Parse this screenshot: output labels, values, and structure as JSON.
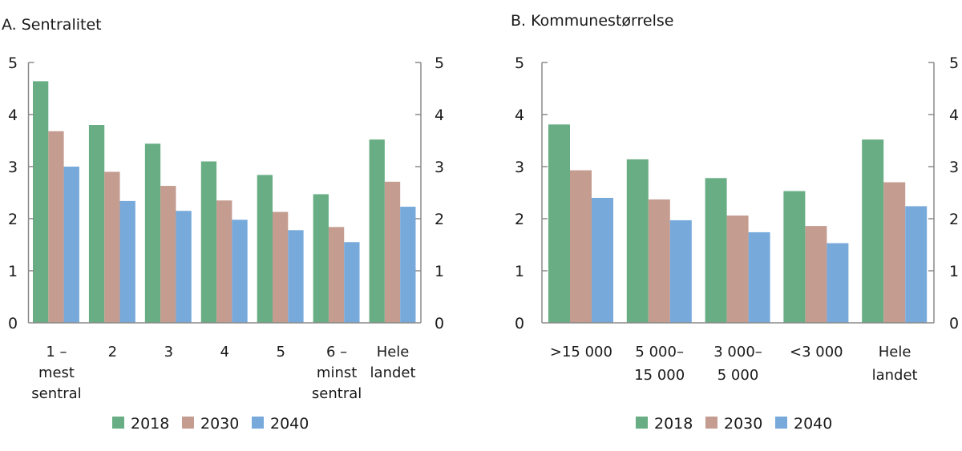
{
  "colors": {
    "2018": "#68ad84",
    "2030": "#c49c90",
    "2040": "#77aadb",
    "axis": "#8a8a8a"
  },
  "chart_data": [
    {
      "type": "bar",
      "panel": "A",
      "title": "A.  Sentralitet",
      "xlabel": "",
      "ylabel": "",
      "ylim": [
        0,
        5
      ],
      "yticks": [
        "0",
        "1",
        "2",
        "3",
        "4",
        "5"
      ],
      "dual_y_axis": true,
      "grid": false,
      "legend_position": "bottom-center",
      "categories": [
        [
          "1 –",
          "mest",
          "sentral"
        ],
        [
          "2"
        ],
        [
          "3"
        ],
        [
          "4"
        ],
        [
          "5"
        ],
        [
          "6 –",
          "minst",
          "sentral"
        ],
        [
          "Hele",
          "landet"
        ]
      ],
      "series": [
        {
          "name": "2018",
          "values": [
            4.64,
            3.8,
            3.44,
            3.1,
            2.84,
            2.47,
            3.52
          ]
        },
        {
          "name": "2030",
          "values": [
            3.68,
            2.9,
            2.63,
            2.35,
            2.13,
            1.84,
            2.71
          ]
        },
        {
          "name": "2040",
          "values": [
            3.0,
            2.34,
            2.15,
            1.98,
            1.78,
            1.55,
            2.23
          ]
        }
      ]
    },
    {
      "type": "bar",
      "panel": "B",
      "title": "B.  Kommunestørrelse",
      "xlabel": "",
      "ylabel": "",
      "ylim": [
        0,
        5
      ],
      "yticks": [
        "0",
        "1",
        "2",
        "3",
        "4",
        "5"
      ],
      "dual_y_axis": true,
      "grid": false,
      "legend_position": "bottom-center",
      "categories": [
        [
          ">15 000"
        ],
        [
          "5 000–",
          "15 000"
        ],
        [
          "3 000–",
          "5 000"
        ],
        [
          "<3 000"
        ],
        [
          "Hele",
          "landet"
        ]
      ],
      "series": [
        {
          "name": "2018",
          "values": [
            3.81,
            3.14,
            2.78,
            2.53,
            3.52
          ]
        },
        {
          "name": "2030",
          "values": [
            2.93,
            2.37,
            2.06,
            1.86,
            2.7
          ]
        },
        {
          "name": "2040",
          "values": [
            2.4,
            1.97,
            1.74,
            1.53,
            2.24
          ]
        }
      ]
    }
  ]
}
